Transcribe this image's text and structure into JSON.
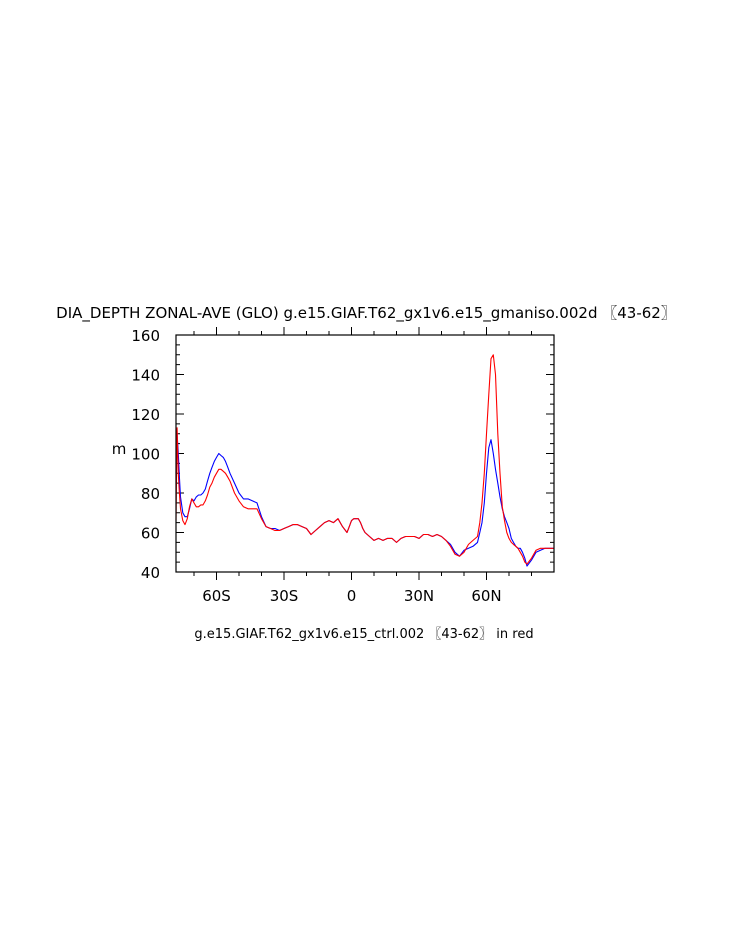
{
  "chart_data": {
    "type": "line",
    "title": "DIA_DEPTH ZONAL-AVE (GLO) g.e15.GIAF.T62_gx1v6.e15_gmaniso.002d 〖43-62〗",
    "xlabel": "g.e15.GIAF.T62_gx1v6.e15_ctrl.002 〖43-62〗 in red",
    "ylabel": "m",
    "xlim": [
      -78,
      90
    ],
    "ylim": [
      40,
      160
    ],
    "x_ticks": [
      {
        "value": -60,
        "label": "60S"
      },
      {
        "value": -30,
        "label": "30S"
      },
      {
        "value": 0,
        "label": "0"
      },
      {
        "value": 30,
        "label": "30N"
      },
      {
        "value": 60,
        "label": "60N"
      }
    ],
    "y_ticks": [
      40,
      60,
      80,
      100,
      120,
      140,
      160
    ],
    "grid": false,
    "series": [
      {
        "color": "#0000ff",
        "x": [
          -78,
          -77.5,
          -77,
          -76.5,
          -76,
          -75,
          -74,
          -73,
          -72,
          -71,
          -70,
          -69,
          -68,
          -67,
          -66,
          -65,
          -64,
          -63,
          -62,
          -61,
          -60,
          -59,
          -58,
          -57,
          -56,
          -55,
          -54,
          -52,
          -50,
          -48,
          -46,
          -44,
          -42,
          -40,
          -38,
          -36,
          -34,
          -32,
          -30,
          -28,
          -26,
          -24,
          -22,
          -20,
          -18,
          -16,
          -14,
          -12,
          -10,
          -8,
          -6,
          -4,
          -2,
          -1,
          0,
          1,
          2,
          3,
          4,
          5,
          6,
          8,
          10,
          12,
          14,
          16,
          18,
          20,
          22,
          24,
          26,
          28,
          30,
          32,
          34,
          36,
          38,
          40,
          42,
          44,
          46,
          48,
          50,
          52,
          54,
          56,
          57,
          58,
          59,
          60,
          61,
          62,
          63,
          64,
          65,
          66,
          67,
          68,
          69,
          70,
          71,
          72,
          73,
          74,
          75,
          76,
          77,
          78,
          80,
          82,
          84,
          86,
          88,
          90
        ],
        "y": [
          90,
          110,
          100,
          88,
          78,
          70,
          68,
          68,
          72,
          77,
          76,
          78,
          79,
          79,
          80,
          82,
          86,
          90,
          93,
          96,
          98,
          100,
          99,
          98,
          96,
          93,
          90,
          85,
          80,
          77,
          77,
          76,
          75,
          68,
          63,
          62,
          62,
          61,
          62,
          63,
          64,
          64,
          63,
          62,
          59,
          61,
          63,
          65,
          66,
          65,
          67,
          63,
          60,
          63,
          66,
          67,
          67,
          67,
          65,
          62,
          60,
          58,
          56,
          57,
          56,
          57,
          57,
          55,
          57,
          58,
          58,
          58,
          57,
          59,
          59,
          58,
          59,
          58,
          56,
          54,
          50,
          48,
          51,
          52,
          53,
          55,
          60,
          65,
          75,
          90,
          103,
          107,
          100,
          92,
          85,
          78,
          72,
          68,
          65,
          62,
          57,
          55,
          53,
          52,
          52,
          50,
          47,
          43,
          46,
          50,
          51,
          52,
          52,
          52
        ]
      },
      {
        "color": "#ff0000",
        "x": [
          -78,
          -77.5,
          -77,
          -76.5,
          -76,
          -75,
          -74,
          -73,
          -72,
          -71,
          -70,
          -69,
          -68,
          -67,
          -66,
          -65,
          -64,
          -63,
          -62,
          -61,
          -60,
          -59,
          -58,
          -57,
          -56,
          -55,
          -54,
          -52,
          -50,
          -48,
          -46,
          -44,
          -42,
          -40,
          -38,
          -36,
          -34,
          -32,
          -30,
          -28,
          -26,
          -24,
          -22,
          -20,
          -18,
          -16,
          -14,
          -12,
          -10,
          -8,
          -6,
          -4,
          -2,
          -1,
          0,
          1,
          2,
          3,
          4,
          5,
          6,
          8,
          10,
          12,
          14,
          16,
          18,
          20,
          22,
          24,
          26,
          28,
          30,
          32,
          34,
          36,
          38,
          40,
          42,
          44,
          46,
          48,
          50,
          52,
          54,
          56,
          57,
          58,
          59,
          60,
          61,
          62,
          63,
          64,
          65,
          66,
          67,
          68,
          69,
          70,
          71,
          72,
          73,
          74,
          75,
          76,
          77,
          78,
          80,
          82,
          84,
          86,
          88,
          90
        ],
        "y": [
          66,
          113,
          90,
          80,
          72,
          66,
          64,
          67,
          73,
          77,
          75,
          73,
          73,
          74,
          74,
          76,
          79,
          83,
          85,
          88,
          90,
          92,
          92,
          91,
          90,
          88,
          86,
          80,
          76,
          73,
          72,
          72,
          72,
          67,
          63,
          62,
          61,
          61,
          62,
          63,
          64,
          64,
          63,
          62,
          59,
          61,
          63,
          65,
          66,
          65,
          67,
          63,
          60,
          63,
          66,
          67,
          67,
          67,
          65,
          62,
          60,
          58,
          56,
          57,
          56,
          57,
          57,
          55,
          57,
          58,
          58,
          58,
          57,
          59,
          59,
          58,
          59,
          58,
          56,
          53,
          49,
          48,
          50,
          54,
          56,
          58,
          65,
          75,
          90,
          110,
          130,
          148,
          150,
          140,
          110,
          90,
          73,
          66,
          60,
          57,
          55,
          54,
          53,
          52,
          50,
          48,
          45,
          44,
          47,
          51,
          52,
          52,
          52,
          52
        ]
      }
    ]
  }
}
